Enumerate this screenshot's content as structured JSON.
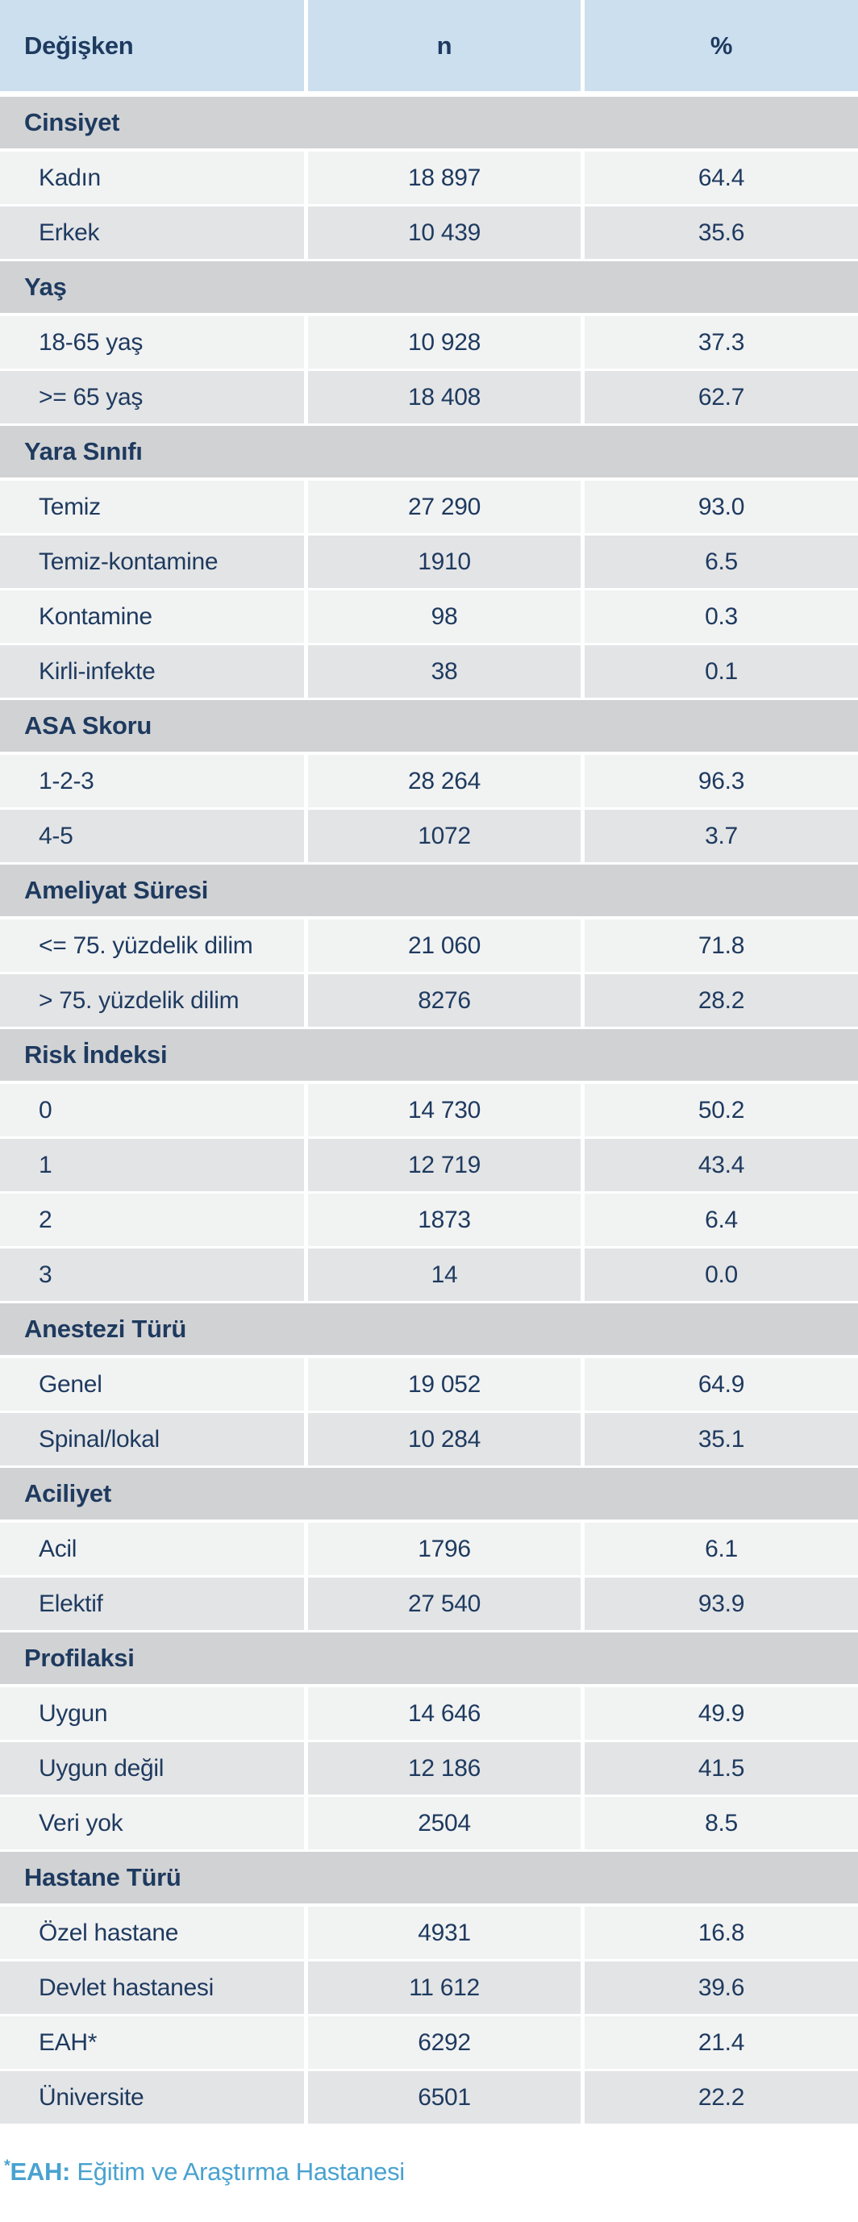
{
  "table": {
    "columns": [
      "Değişken",
      "n",
      "%"
    ],
    "sections": [
      {
        "title": "Cinsiyet",
        "rows": [
          {
            "label": "Kadın",
            "n": "18 897",
            "pct": "64.4"
          },
          {
            "label": "Erkek",
            "n": "10 439",
            "pct": "35.6"
          }
        ]
      },
      {
        "title": "Yaş",
        "rows": [
          {
            "label": "18-65 yaş",
            "n": "10 928",
            "pct": "37.3"
          },
          {
            "label": ">= 65 yaş",
            "n": "18 408",
            "pct": "62.7"
          }
        ]
      },
      {
        "title": "Yara Sınıfı",
        "rows": [
          {
            "label": "Temiz",
            "n": "27 290",
            "pct": "93.0"
          },
          {
            "label": "Temiz-kontamine",
            "n": "1910",
            "pct": "6.5"
          },
          {
            "label": "Kontamine",
            "n": "98",
            "pct": "0.3"
          },
          {
            "label": "Kirli-infekte",
            "n": "38",
            "pct": "0.1"
          }
        ]
      },
      {
        "title": "ASA Skoru",
        "rows": [
          {
            "label": "1-2-3",
            "n": "28 264",
            "pct": "96.3"
          },
          {
            "label": "4-5",
            "n": "1072",
            "pct": "3.7"
          }
        ]
      },
      {
        "title": "Ameliyat Süresi",
        "rows": [
          {
            "label": "<= 75. yüzdelik dilim",
            "n": "21 060",
            "pct": "71.8"
          },
          {
            "label": "> 75. yüzdelik dilim",
            "n": "8276",
            "pct": "28.2"
          }
        ]
      },
      {
        "title": "Risk İndeksi",
        "rows": [
          {
            "label": "0",
            "n": "14 730",
            "pct": "50.2"
          },
          {
            "label": "1",
            "n": "12 719",
            "pct": "43.4"
          },
          {
            "label": "2",
            "n": "1873",
            "pct": "6.4"
          },
          {
            "label": "3",
            "n": "14",
            "pct": "0.0"
          }
        ]
      },
      {
        "title": "Anestezi Türü",
        "rows": [
          {
            "label": "Genel",
            "n": "19 052",
            "pct": "64.9"
          },
          {
            "label": "Spinal/lokal",
            "n": "10 284",
            "pct": "35.1"
          }
        ]
      },
      {
        "title": "Aciliyet",
        "rows": [
          {
            "label": "Acil",
            "n": "1796",
            "pct": "6.1"
          },
          {
            "label": "Elektif",
            "n": "27 540",
            "pct": "93.9"
          }
        ]
      },
      {
        "title": "Profilaksi",
        "rows": [
          {
            "label": "Uygun",
            "n": "14 646",
            "pct": "49.9"
          },
          {
            "label": "Uygun değil",
            "n": "12 186",
            "pct": "41.5"
          },
          {
            "label": "Veri yok",
            "n": "2504",
            "pct": "8.5"
          }
        ]
      },
      {
        "title": "Hastane Türü",
        "rows": [
          {
            "label": "Özel hastane",
            "n": "4931",
            "pct": "16.8"
          },
          {
            "label": "Devlet hastanesi",
            "n": "11 612",
            "pct": "39.6"
          },
          {
            "label": "EAH*",
            "n": "6292",
            "pct": "21.4"
          },
          {
            "label": "Üniversite",
            "n": "6501",
            "pct": "22.2"
          }
        ]
      }
    ]
  },
  "footnote": {
    "marker": "*",
    "abbr": "EAH:",
    "text": "Eğitim ve Araştırma Hastanesi"
  },
  "colors": {
    "header_bg": "#cbdfef",
    "section_bg": "#d1d2d4",
    "row_light_bg": "#f1f2f2",
    "row_dark_bg": "#e3e4e6",
    "text": "#1e3a5f",
    "footnote_text": "#49a2d0",
    "separator": "#ffffff"
  }
}
